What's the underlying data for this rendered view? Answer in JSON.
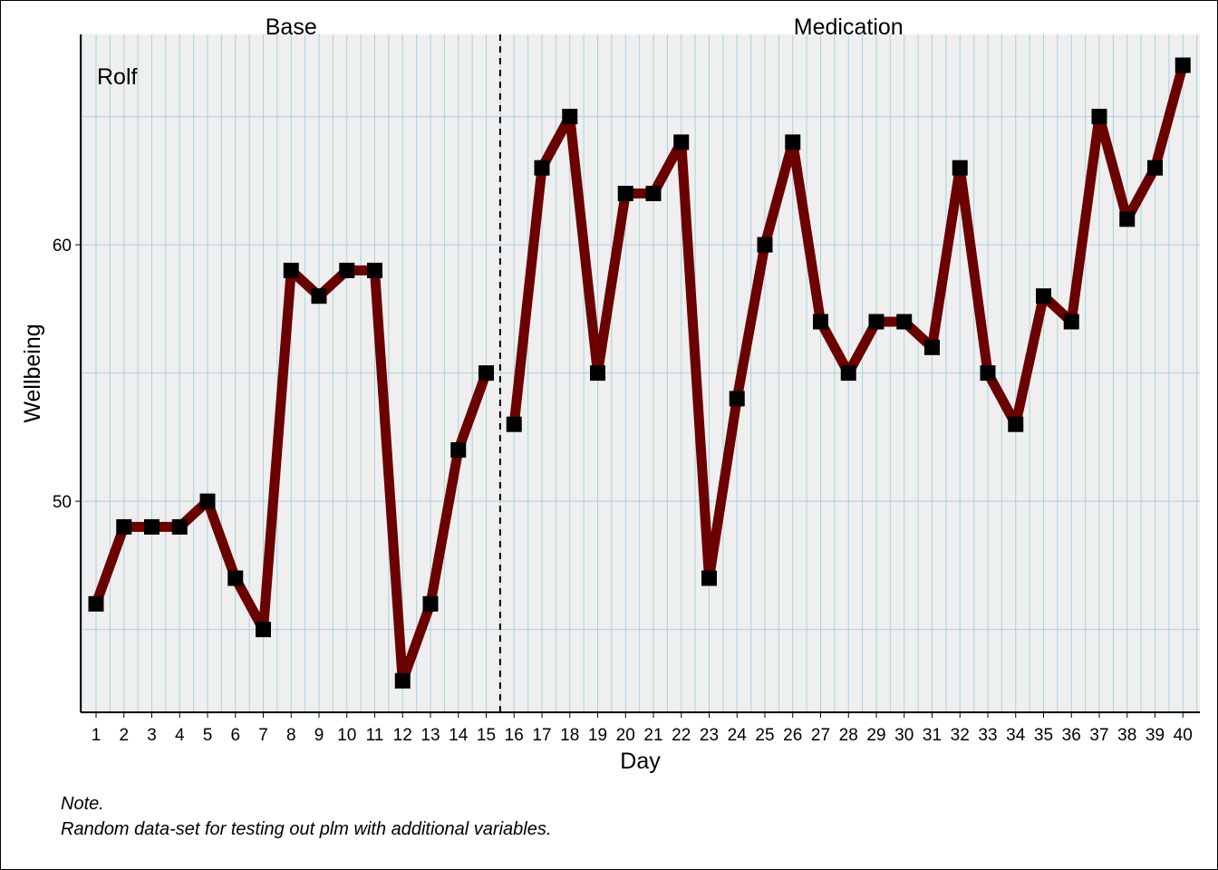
{
  "chart_data": {
    "type": "line",
    "case_label": "Rolf",
    "xlabel": "Day",
    "ylabel": "Wellbeing",
    "x": [
      1,
      2,
      3,
      4,
      5,
      6,
      7,
      8,
      9,
      10,
      11,
      12,
      13,
      14,
      15,
      16,
      17,
      18,
      19,
      20,
      21,
      22,
      23,
      24,
      25,
      26,
      27,
      28,
      29,
      30,
      31,
      32,
      33,
      34,
      35,
      36,
      37,
      38,
      39,
      40
    ],
    "xlim": [
      1,
      40
    ],
    "ylim": [
      42,
      68
    ],
    "y_ticks": [
      50,
      60
    ],
    "phases": [
      {
        "name": "Base",
        "start": 1,
        "end": 15,
        "values": [
          46,
          49,
          49,
          49,
          50,
          47,
          45,
          59,
          58,
          59,
          59,
          43,
          46,
          52,
          55
        ]
      },
      {
        "name": "Medication",
        "start": 16,
        "end": 40,
        "values": [
          53,
          63,
          65,
          55,
          62,
          62,
          64,
          47,
          54,
          60,
          64,
          57,
          55,
          57,
          57,
          56,
          63,
          55,
          53,
          58,
          57,
          65,
          61,
          63,
          67
        ]
      }
    ],
    "phase_separator_after_x": 15.5,
    "grid": true,
    "colors": {
      "line": "#6b0000",
      "marker": "#000000",
      "panel": "#efefef",
      "grid": "#a9d2df"
    }
  },
  "note": {
    "title": "Note.",
    "text": "Random data-set for testing out plm with additional variables."
  }
}
